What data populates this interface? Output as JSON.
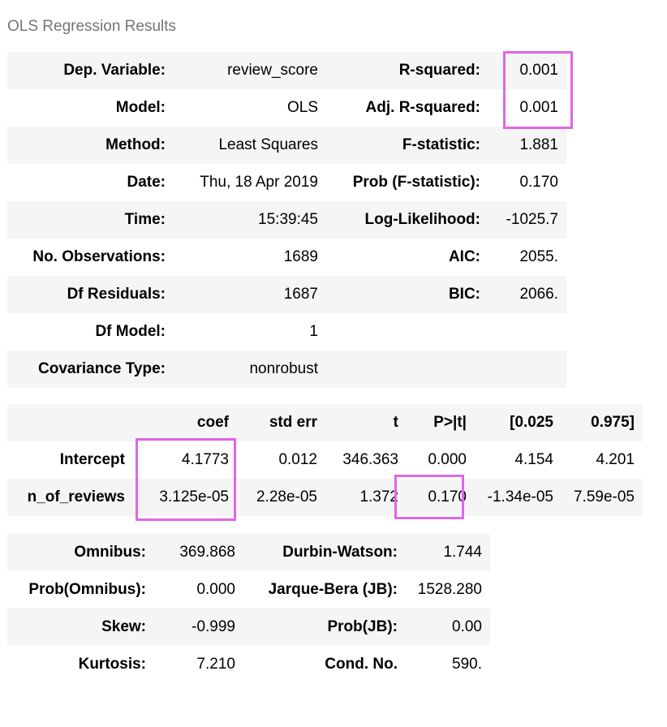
{
  "caption": "OLS Regression Results",
  "summary": [
    {
      "l1": "Dep. Variable:",
      "v1": "review_score",
      "l2": "R-squared:",
      "v2": "0.001"
    },
    {
      "l1": "Model:",
      "v1": "OLS",
      "l2": "Adj. R-squared:",
      "v2": "0.001"
    },
    {
      "l1": "Method:",
      "v1": "Least Squares",
      "l2": "F-statistic:",
      "v2": "1.881"
    },
    {
      "l1": "Date:",
      "v1": "Thu, 18 Apr 2019",
      "l2": "Prob (F-statistic):",
      "v2": "0.170"
    },
    {
      "l1": "Time:",
      "v1": "15:39:45",
      "l2": "Log-Likelihood:",
      "v2": "-1025.7"
    },
    {
      "l1": "No. Observations:",
      "v1": "1689",
      "l2": "AIC:",
      "v2": "2055."
    },
    {
      "l1": "Df Residuals:",
      "v1": "1687",
      "l2": "BIC:",
      "v2": "2066."
    },
    {
      "l1": "Df Model:",
      "v1": "1",
      "l2": "",
      "v2": ""
    },
    {
      "l1": "Covariance Type:",
      "v1": "nonrobust",
      "l2": "",
      "v2": ""
    }
  ],
  "coef_table": {
    "headers": [
      "",
      "coef",
      "std err",
      "t",
      "P>|t|",
      "[0.025",
      "0.975]"
    ],
    "rows": [
      {
        "name": "Intercept",
        "cells": [
          "4.1773",
          "0.012",
          "346.363",
          "0.000",
          "4.154",
          "4.201"
        ]
      },
      {
        "name": "n_of_reviews",
        "cells": [
          "3.125e-05",
          "2.28e-05",
          "1.372",
          "0.170",
          "-1.34e-05",
          "7.59e-05"
        ]
      }
    ]
  },
  "diagnostics": [
    {
      "l1": "Omnibus:",
      "v1": "369.868",
      "l2": "Durbin-Watson:",
      "v2": "1.744"
    },
    {
      "l1": "Prob(Omnibus):",
      "v1": "0.000",
      "l2": "Jarque-Bera (JB):",
      "v2": "1528.280"
    },
    {
      "l1": "Skew:",
      "v1": "-0.999",
      "l2": "Prob(JB):",
      "v2": "0.00"
    },
    {
      "l1": "Kurtosis:",
      "v1": "7.210",
      "l2": "Cond. No.",
      "v2": "590."
    }
  ],
  "highlight_color": "#e066e6",
  "row_shade_color": "#f5f5f5"
}
